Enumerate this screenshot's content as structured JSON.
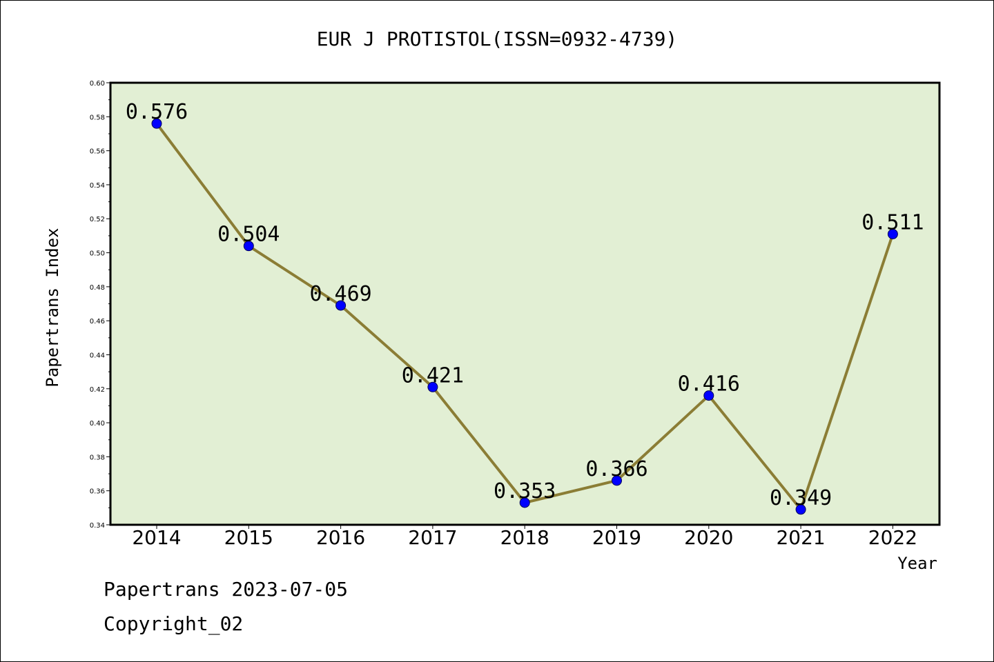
{
  "chart_data": {
    "type": "line",
    "title": "EUR J PROTISTOL(ISSN=0932-4739)",
    "xlabel": "Year",
    "ylabel": "Papertrans Index",
    "categories": [
      "2014",
      "2015",
      "2016",
      "2017",
      "2018",
      "2019",
      "2020",
      "2021",
      "2022"
    ],
    "values": [
      0.576,
      0.504,
      0.469,
      0.421,
      0.353,
      0.366,
      0.416,
      0.349,
      0.511
    ],
    "data_labels": [
      "0.576",
      "0.504",
      "0.469",
      "0.421",
      "0.353",
      "0.366",
      "0.416",
      "0.349",
      "0.511"
    ],
    "ylim": [
      0.34,
      0.6
    ],
    "yticks": [
      "0.34",
      "0.36",
      "0.38",
      "0.40",
      "0.42",
      "0.44",
      "0.46",
      "0.48",
      "0.50",
      "0.52",
      "0.54",
      "0.56",
      "0.58",
      "0.60"
    ],
    "grid": false,
    "colors": {
      "plot_background": "#e2efd4",
      "line": "#8b7d35",
      "marker": "#0000ff"
    }
  },
  "footer": {
    "line1": "Papertrans 2023-07-05",
    "line2": "Copyright_02"
  }
}
